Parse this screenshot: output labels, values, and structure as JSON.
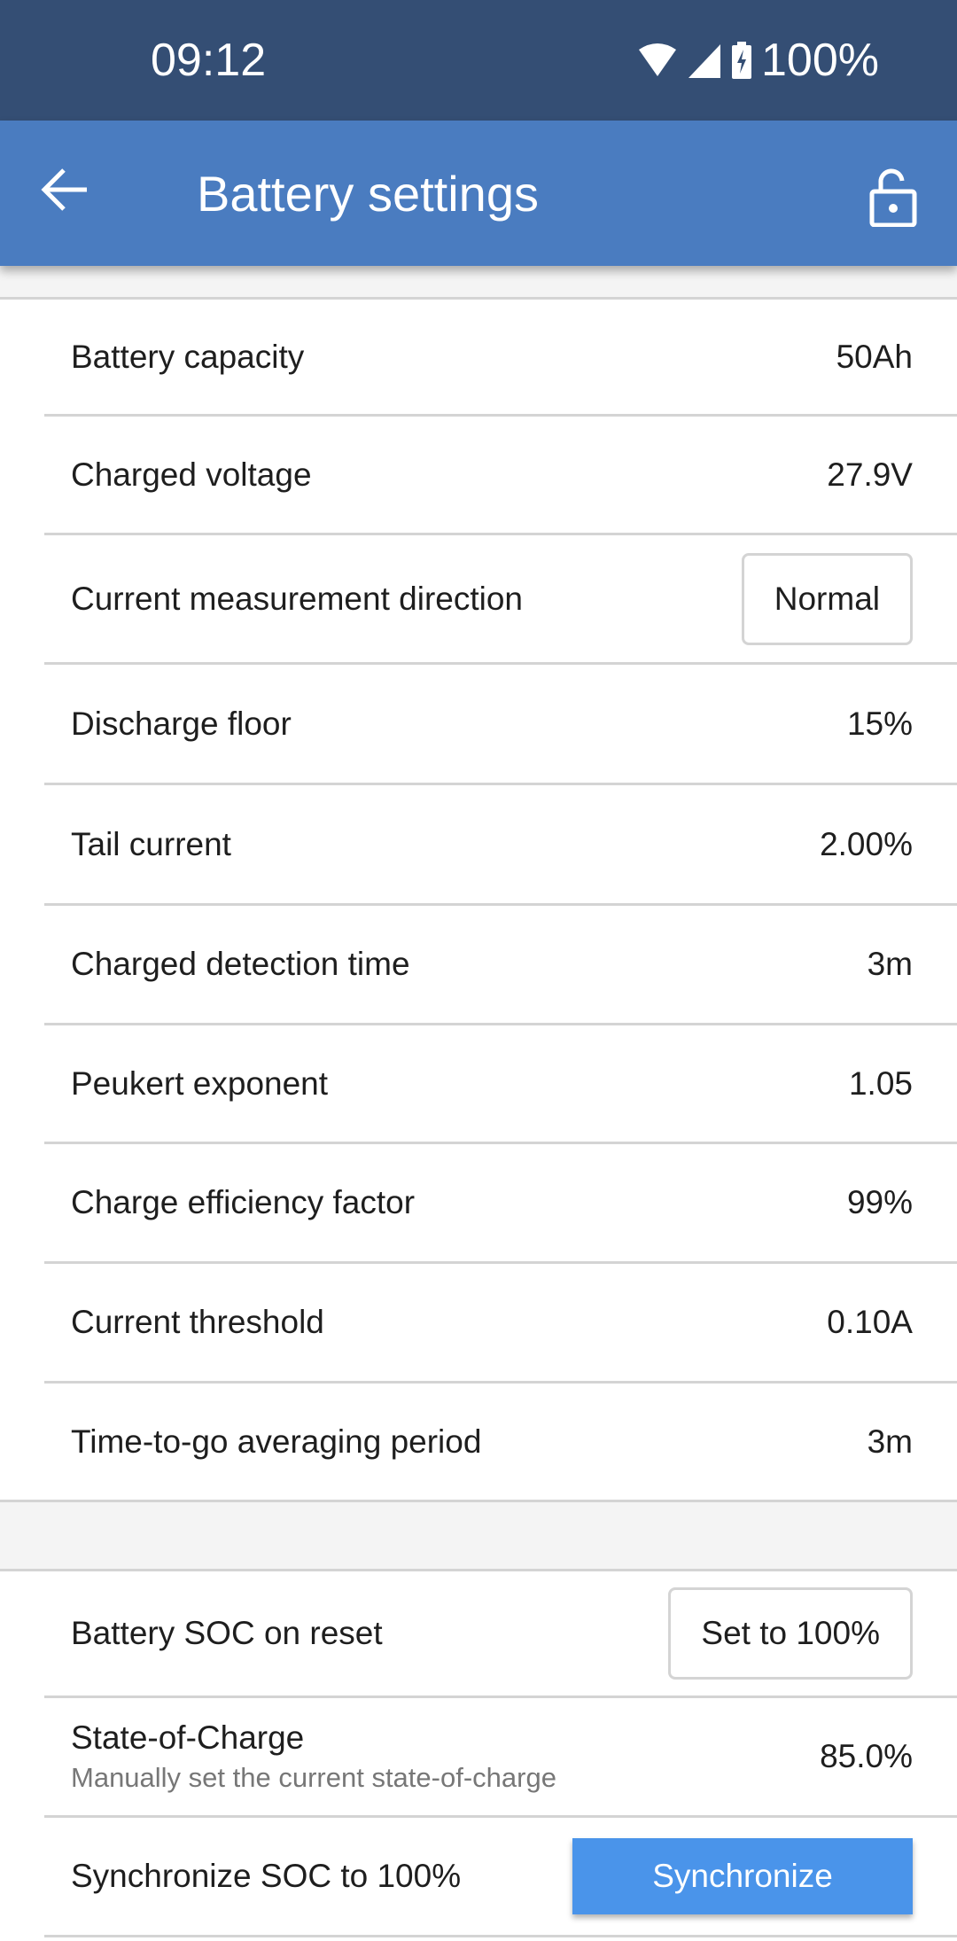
{
  "status_bar": {
    "time": "09:12",
    "battery": "100%",
    "icons": [
      "wifi-icon",
      "signal-icon",
      "battery-charging-icon"
    ]
  },
  "app_bar": {
    "title": "Battery settings",
    "back_icon": "arrow-left-icon",
    "lock_icon": "unlocked-padlock-icon"
  },
  "settings": [
    {
      "label": "Battery capacity",
      "value": "50Ah"
    },
    {
      "label": "Charged voltage",
      "value": "27.9V"
    },
    {
      "label": "Current measurement direction",
      "button": "Normal"
    },
    {
      "label": "Discharge floor",
      "value": "15%"
    },
    {
      "label": "Tail current",
      "value": "2.00%"
    },
    {
      "label": "Charged detection time",
      "value": "3m"
    },
    {
      "label": "Peukert exponent",
      "value": "1.05"
    },
    {
      "label": "Charge efficiency factor",
      "value": "99%"
    },
    {
      "label": "Current threshold",
      "value": "0.10A"
    },
    {
      "label": "Time-to-go averaging period",
      "value": "3m"
    }
  ],
  "soc": {
    "reset_label": "Battery SOC on reset",
    "reset_button": "Set to 100%",
    "soc_label": "State-of-Charge",
    "soc_sub": "Manually set the current state-of-charge",
    "soc_value": "85.0%",
    "sync_label": "Synchronize SOC to 100%",
    "sync_button": "Synchronize"
  },
  "colors": {
    "status_bar": "#344e74",
    "app_bar": "#4a7cc0",
    "primary_button": "#4a94ea"
  }
}
